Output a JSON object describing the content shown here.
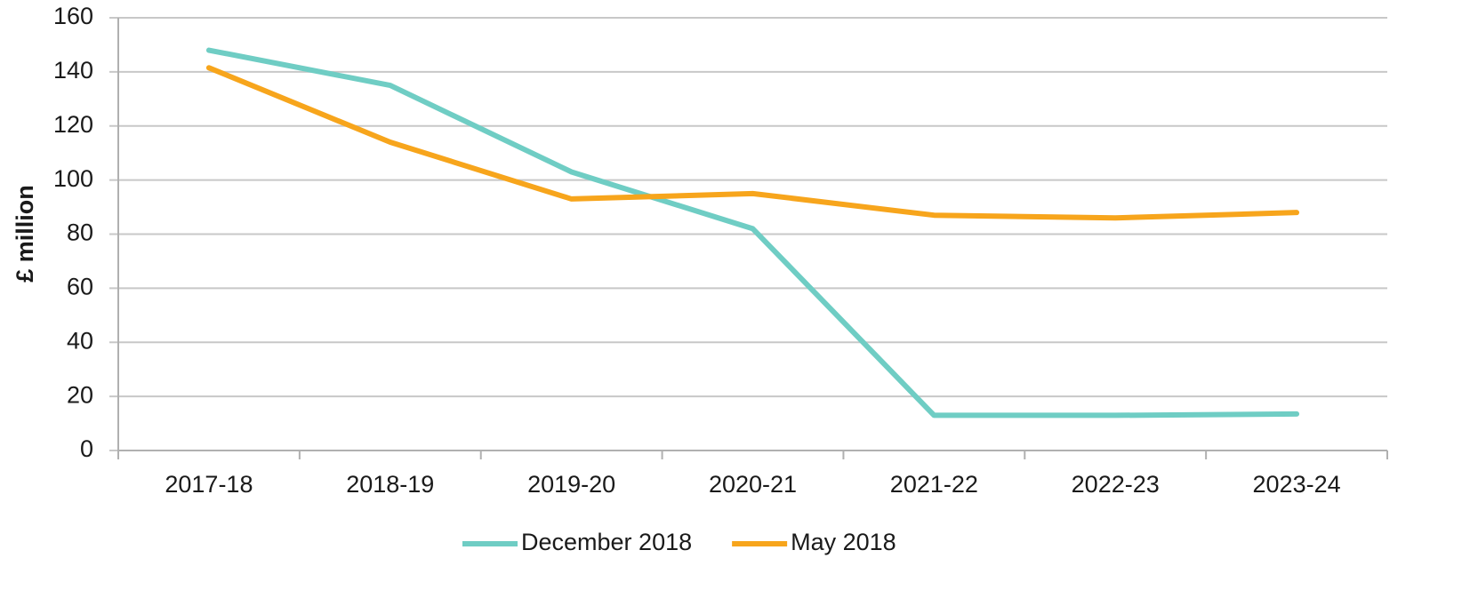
{
  "chart_data": {
    "type": "line",
    "y_label": "£ million",
    "categories": [
      "2017-18",
      "2018-19",
      "2019-20",
      "2020-21",
      "2021-22",
      "2022-23",
      "2023-24"
    ],
    "series": [
      {
        "name": "December 2018",
        "color": "#6fcdc4",
        "values": [
          148,
          135,
          103,
          82,
          13,
          13,
          13.5
        ]
      },
      {
        "name": "May 2018",
        "color": "#f7a51c",
        "values": [
          141.5,
          114,
          93,
          95,
          87,
          86,
          88
        ]
      }
    ],
    "ylim": [
      0,
      160
    ],
    "yticks": [
      0,
      20,
      40,
      60,
      80,
      100,
      120,
      140,
      160
    ],
    "grid": true,
    "legend": "bottom"
  }
}
